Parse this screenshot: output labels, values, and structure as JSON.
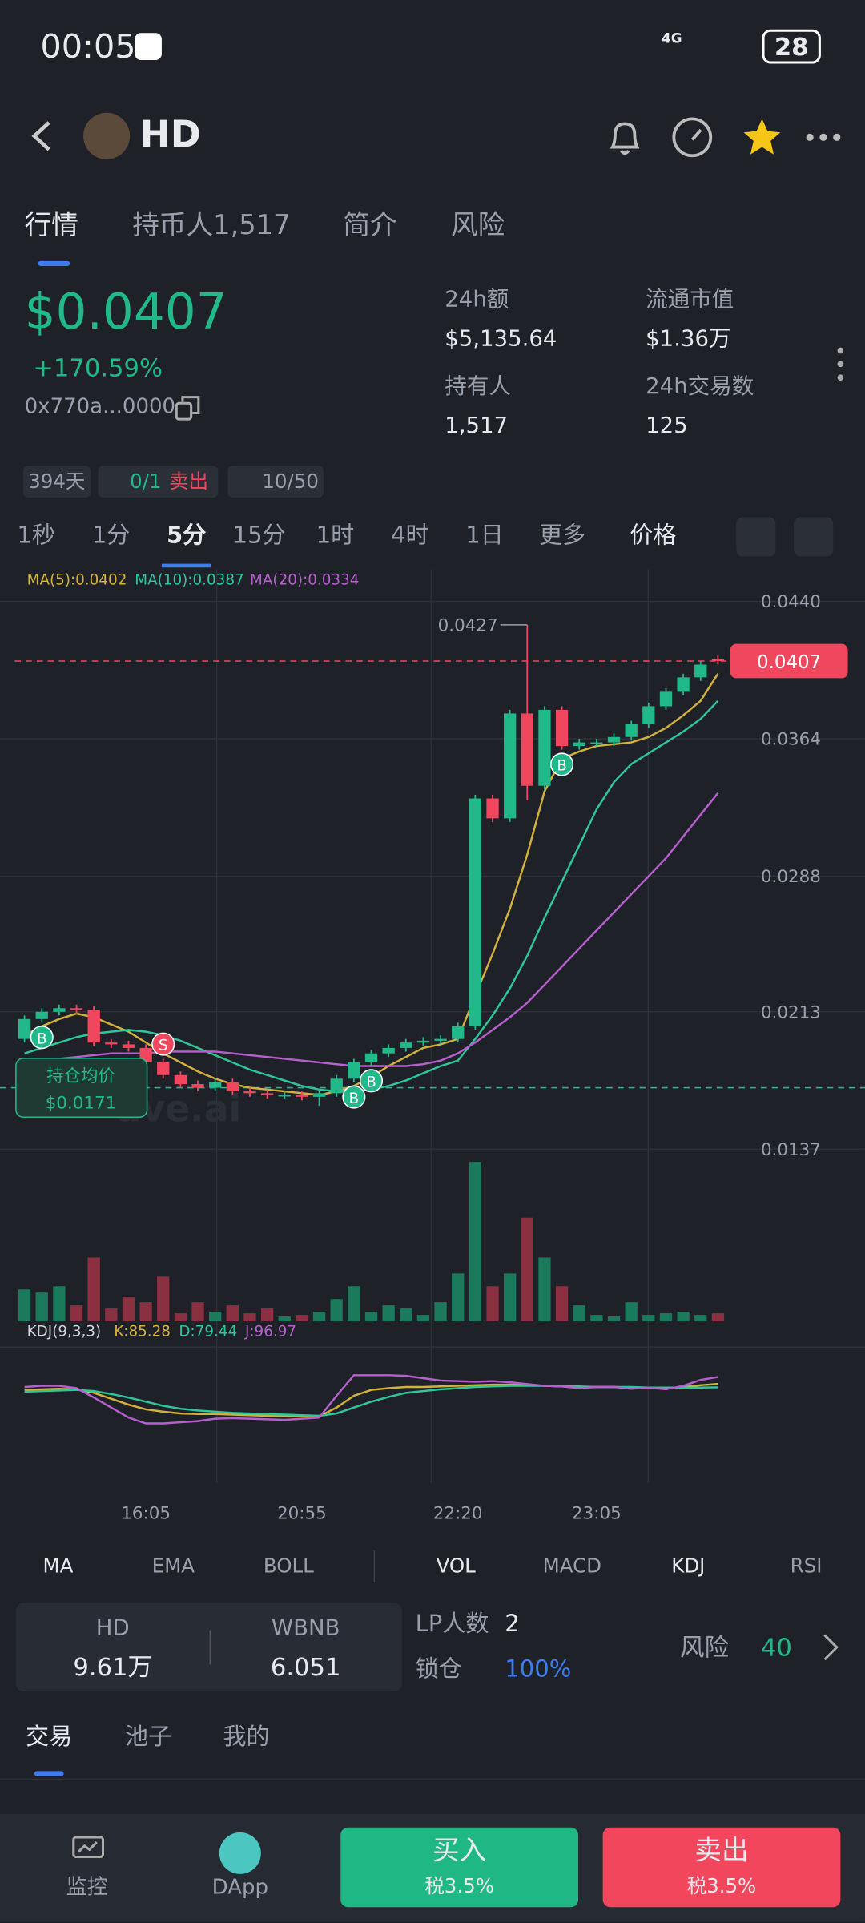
{
  "status": {
    "time": "00:05",
    "battery": "28",
    "network": "4G"
  },
  "header": {
    "title": "HD"
  },
  "tabs": [
    "行情",
    "持币人1,517",
    "简介",
    "风险"
  ],
  "price": {
    "value": "$0.0407",
    "change": "+170.59%",
    "address": "0x770a...0000"
  },
  "stats": [
    {
      "label": "24h额",
      "value": "$5,135.64"
    },
    {
      "label": "流通市值",
      "value": "$1.36万"
    },
    {
      "label": "持有人",
      "value": "1,517"
    },
    {
      "label": "24h交易数",
      "value": "125"
    }
  ],
  "badges": {
    "age": "394天",
    "ratio": "0/1",
    "sell": "卖出",
    "top": "10/50"
  },
  "intervals": [
    "1秒",
    "1分",
    "5分",
    "15分",
    "1时",
    "4时",
    "1日",
    "更多",
    "价格"
  ],
  "chart_data": {
    "type": "candlestick",
    "watermark": "ave.ai",
    "categories": [
      null,
      null,
      null,
      null,
      null,
      null,
      null,
      "16:05",
      null,
      null,
      null,
      null,
      null,
      null,
      null,
      null,
      "20:55",
      null,
      null,
      null,
      null,
      null,
      null,
      null,
      null,
      "22:20",
      null,
      null,
      null,
      null,
      null,
      null,
      null,
      "23:05",
      null,
      null,
      null,
      null,
      null,
      null,
      null
    ],
    "ylim": [
      0.0132,
      0.0454
    ],
    "yticks": [
      {
        "value": 0.044,
        "label": "0.0440"
      },
      {
        "value": 0.0364,
        "label": "0.0364"
      },
      {
        "value": 0.0288,
        "label": "0.0288"
      },
      {
        "value": 0.0213,
        "label": "0.0213"
      },
      {
        "value": 0.0137,
        "label": "0.0137"
      }
    ],
    "colors": {
      "up": "#21b98a",
      "down": "#f0475f",
      "volume_up": "#1c7a5c",
      "volume_down": "#8a3041"
    },
    "open": [
      0.0198,
      0.0209,
      0.0213,
      0.0215,
      0.0214,
      0.0196,
      0.0195,
      0.0193,
      0.0185,
      0.0178,
      0.0173,
      0.0171,
      0.0174,
      0.0169,
      0.0168,
      0.0167,
      0.0167,
      0.0166,
      0.0168,
      0.0176,
      0.0185,
      0.019,
      0.0193,
      0.0196,
      0.0197,
      0.0198,
      0.0205,
      0.0331,
      0.032,
      0.0378,
      0.0338,
      0.038,
      0.036,
      0.0362,
      0.0362,
      0.0365,
      0.0372,
      0.0382,
      0.039,
      0.0398,
      0.0408
    ],
    "high": [
      0.0211,
      0.0215,
      0.0217,
      0.0217,
      0.0216,
      0.0198,
      0.0197,
      0.0195,
      0.0187,
      0.018,
      0.0175,
      0.0176,
      0.0176,
      0.0171,
      0.017,
      0.0169,
      0.0169,
      0.017,
      0.0178,
      0.0187,
      0.0192,
      0.0195,
      0.0198,
      0.0199,
      0.02,
      0.0207,
      0.0333,
      0.0333,
      0.038,
      0.0427,
      0.0382,
      0.0382,
      0.0364,
      0.0364,
      0.0367,
      0.0374,
      0.0384,
      0.0392,
      0.04,
      0.0407,
      0.041
    ],
    "low": [
      0.0196,
      0.0207,
      0.0211,
      0.0212,
      0.0194,
      0.0193,
      0.0191,
      0.0183,
      0.0176,
      0.0171,
      0.0169,
      0.0169,
      0.0167,
      0.0166,
      0.0165,
      0.0165,
      0.0164,
      0.0161,
      0.0166,
      0.0174,
      0.0183,
      0.0188,
      0.0191,
      0.0194,
      0.0195,
      0.0196,
      0.0203,
      0.0318,
      0.0318,
      0.033,
      0.0336,
      0.0358,
      0.0358,
      0.036,
      0.036,
      0.0363,
      0.037,
      0.038,
      0.0388,
      0.0396,
      0.0405
    ],
    "close": [
      0.0209,
      0.0213,
      0.0215,
      0.0214,
      0.0196,
      0.0195,
      0.0193,
      0.0185,
      0.0178,
      0.0173,
      0.0171,
      0.0174,
      0.0169,
      0.0168,
      0.0167,
      0.0167,
      0.0166,
      0.0168,
      0.0176,
      0.0185,
      0.019,
      0.0193,
      0.0196,
      0.0197,
      0.0198,
      0.0205,
      0.0331,
      0.032,
      0.0378,
      0.0338,
      0.038,
      0.036,
      0.0362,
      0.0362,
      0.0365,
      0.0372,
      0.0382,
      0.039,
      0.0398,
      0.0405,
      0.0407
    ],
    "ma": [
      {
        "name": "MA(5):0.0402",
        "color": "#d4b13a",
        "values": [
          0.02,
          0.0205,
          0.0209,
          0.0212,
          0.021,
          0.0206,
          0.0202,
          0.0196,
          0.019,
          0.0185,
          0.018,
          0.0176,
          0.0173,
          0.0171,
          0.017,
          0.0169,
          0.0168,
          0.0167,
          0.0169,
          0.0172,
          0.0177,
          0.0183,
          0.0188,
          0.0193,
          0.0195,
          0.0198,
          0.0222,
          0.0245,
          0.027,
          0.03,
          0.0335,
          0.0353,
          0.0357,
          0.036,
          0.0361,
          0.0362,
          0.0365,
          0.037,
          0.0377,
          0.0385,
          0.04
        ]
      },
      {
        "name": "MA(10):0.0387",
        "color": "#2ec79a",
        "values": [
          0.019,
          0.0193,
          0.0196,
          0.0199,
          0.0201,
          0.0202,
          0.0203,
          0.0202,
          0.02,
          0.0197,
          0.0193,
          0.0189,
          0.0185,
          0.0181,
          0.0178,
          0.0175,
          0.0172,
          0.017,
          0.0169,
          0.0169,
          0.017,
          0.0172,
          0.0175,
          0.0179,
          0.0183,
          0.0186,
          0.0198,
          0.0211,
          0.0226,
          0.0244,
          0.0265,
          0.0285,
          0.0305,
          0.0325,
          0.034,
          0.035,
          0.0356,
          0.0362,
          0.0368,
          0.0375,
          0.0385
        ]
      },
      {
        "name": "MA(20):0.0334",
        "color": "#b85fd0",
        "values": [
          0.0185,
          0.0186,
          0.0187,
          0.0188,
          0.0189,
          0.019,
          0.019,
          0.019,
          0.0191,
          0.0191,
          0.0191,
          0.0191,
          0.019,
          0.0189,
          0.0188,
          0.0187,
          0.0186,
          0.0185,
          0.0184,
          0.0183,
          0.0183,
          0.0183,
          0.0183,
          0.0184,
          0.0186,
          0.019,
          0.0196,
          0.0203,
          0.021,
          0.0218,
          0.0228,
          0.0238,
          0.0248,
          0.0258,
          0.0268,
          0.0278,
          0.0288,
          0.0298,
          0.031,
          0.0322,
          0.0334
        ]
      }
    ],
    "last_price": {
      "value": 0.0407,
      "label": "0.0407"
    },
    "high_label": {
      "value": 0.0427,
      "label": "0.0427"
    },
    "avg_cost": {
      "title": "持仓均价",
      "value": 0.0171,
      "label": "$0.0171"
    },
    "trade_markers": [
      {
        "label": "B",
        "index": 1
      },
      {
        "label": "S",
        "index": 8
      },
      {
        "label": "B",
        "index": 19
      },
      {
        "label": "B",
        "index": 20
      },
      {
        "label": "B",
        "index": 31
      }
    ],
    "volume": {
      "ylim": [
        0,
        100
      ],
      "values": [
        20,
        18,
        22,
        10,
        40,
        8,
        15,
        12,
        28,
        5,
        12,
        6,
        10,
        5,
        8,
        3,
        4,
        6,
        14,
        22,
        6,
        10,
        8,
        4,
        12,
        30,
        100,
        22,
        30,
        65,
        40,
        22,
        10,
        4,
        3,
        12,
        4,
        5,
        6,
        4,
        5
      ]
    },
    "kdj": {
      "title": "KDJ(9,3,3)",
      "ylim": [
        0,
        100
      ],
      "series": [
        {
          "name": "K:85.28",
          "color": "#d4b13a",
          "values": [
            75,
            76,
            77,
            76,
            70,
            60,
            50,
            42,
            38,
            35,
            34,
            34,
            33,
            32,
            31,
            30,
            30,
            30,
            45,
            65,
            75,
            78,
            80,
            80,
            81,
            82,
            83,
            84,
            84,
            83,
            82,
            81,
            80,
            80,
            80,
            79,
            79,
            78,
            80,
            83,
            85.28
          ]
        },
        {
          "name": "D:79.44",
          "color": "#2ec79a",
          "values": [
            72,
            73,
            74,
            75,
            73,
            68,
            62,
            55,
            48,
            43,
            40,
            38,
            36,
            35,
            34,
            33,
            32,
            31,
            35,
            45,
            55,
            63,
            70,
            73,
            76,
            78,
            80,
            81,
            82,
            82,
            82,
            81,
            81,
            80,
            80,
            80,
            79,
            79,
            79,
            79,
            79.44
          ]
        },
        {
          "name": "J:96.97",
          "color": "#b85fd0",
          "values": [
            80,
            82,
            82,
            78,
            62,
            45,
            28,
            18,
            18,
            20,
            22,
            26,
            27,
            26,
            25,
            24,
            26,
            28,
            65,
            100,
            100,
            100,
            99,
            95,
            91,
            90,
            89,
            90,
            88,
            85,
            82,
            81,
            78,
            80,
            80,
            77,
            79,
            76,
            82,
            92,
            96.97
          ]
        }
      ]
    }
  },
  "indicators": {
    "main": [
      "MA",
      "EMA",
      "BOLL"
    ],
    "sub": [
      "VOL",
      "MACD",
      "KDJ",
      "RSI"
    ]
  },
  "pool": {
    "token": "HD",
    "token_amount": "9.61万",
    "quote": "WBNB",
    "quote_amount": "6.051",
    "lp_label": "LP人数",
    "lp_count": "2",
    "lock_label": "锁仓",
    "lock_value": "100%",
    "risk_label": "风险",
    "risk_value": "40"
  },
  "bottom_tabs": [
    "交易",
    "池子",
    "我的"
  ],
  "nav": {
    "monitor": "监控",
    "dapp": "DApp",
    "buy": "买入",
    "buy_tax": "税3.5%",
    "sell": "卖出",
    "sell_tax": "税3.5%"
  }
}
